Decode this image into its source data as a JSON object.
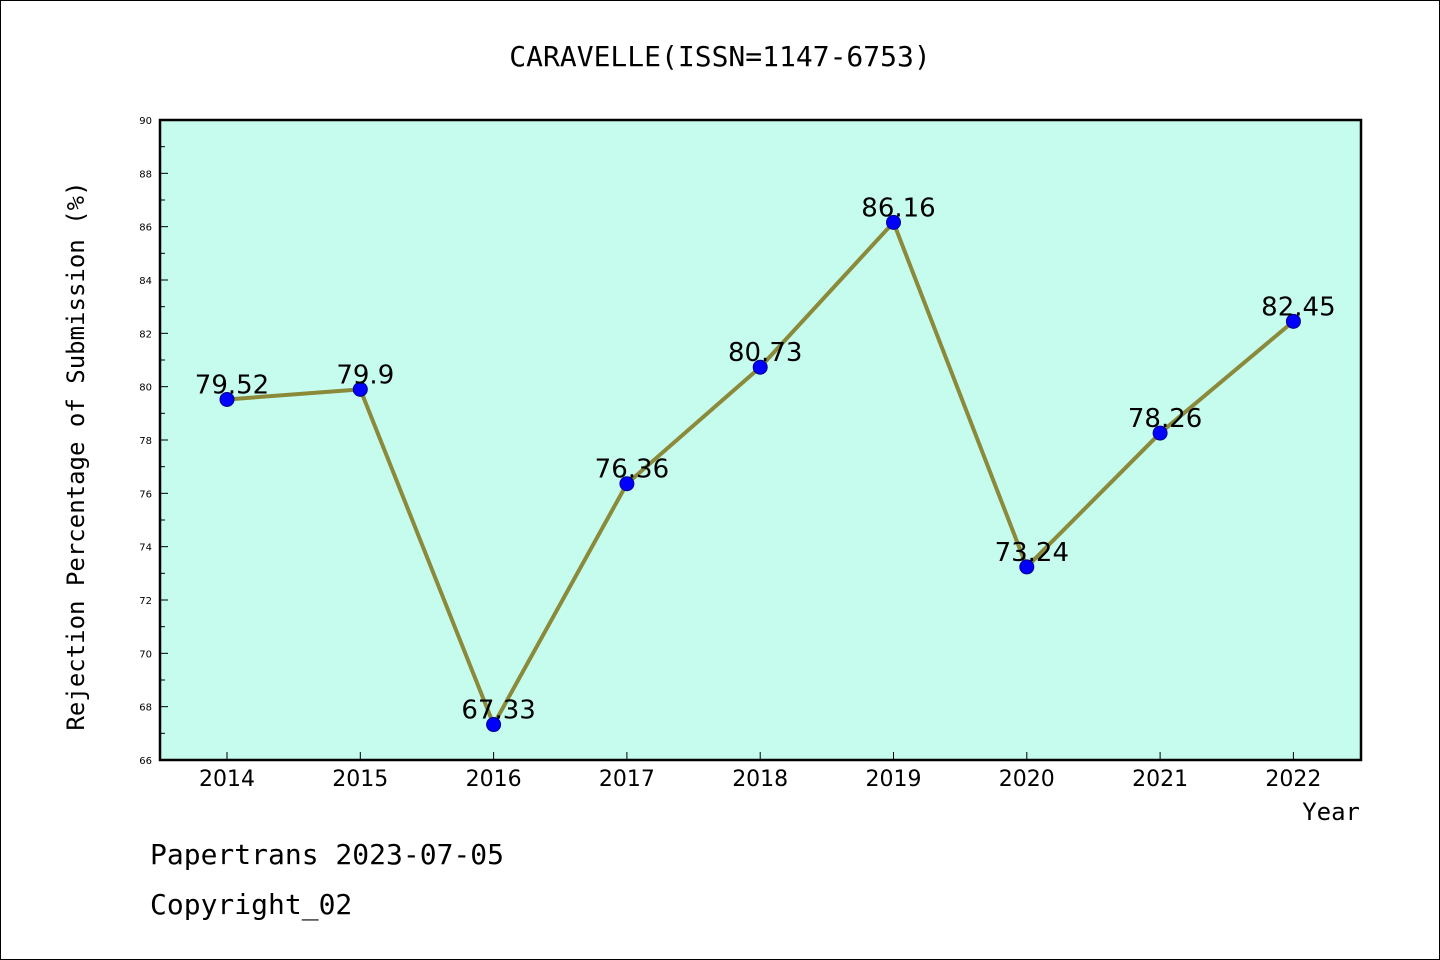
{
  "chart_data": {
    "type": "line",
    "title": "CARAVELLE(ISSN=1147-6753)",
    "xlabel": "Year",
    "ylabel": "Rejection Percentage of Submission (%)",
    "categories": [
      "2014",
      "2015",
      "2016",
      "2017",
      "2018",
      "2019",
      "2020",
      "2021",
      "2022"
    ],
    "values": [
      79.52,
      79.9,
      67.33,
      76.36,
      80.73,
      86.16,
      73.24,
      78.26,
      82.45
    ],
    "data_labels": [
      "79.52",
      "79.9",
      "67.33",
      "76.36",
      "80.73",
      "86.16",
      "73.24",
      "78.26",
      "82.45"
    ],
    "ylim": [
      66,
      90
    ],
    "yticks": [
      "66",
      "68",
      "70",
      "72",
      "74",
      "76",
      "78",
      "80",
      "82",
      "84",
      "86",
      "88",
      "90"
    ],
    "grid": false,
    "colors": {
      "plot_background": "#c6fcee",
      "line": "#8b8a3a",
      "marker": "#0000ff"
    }
  },
  "footer": {
    "line1": "Papertrans 2023-07-05",
    "line2": "Copyright_02"
  }
}
